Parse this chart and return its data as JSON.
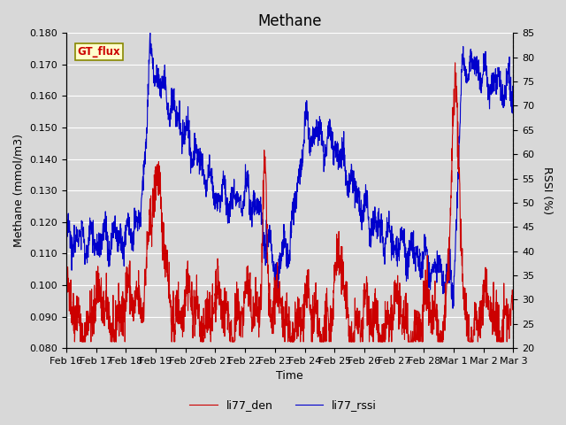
{
  "title": "Methane",
  "ylabel_left": "Methane (mmol/m3)",
  "ylabel_right": "RSSI (%)",
  "xlabel": "Time",
  "ylim_left": [
    0.08,
    0.18
  ],
  "ylim_right": [
    20,
    85
  ],
  "yticks_left": [
    0.08,
    0.09,
    0.1,
    0.11,
    0.12,
    0.13,
    0.14,
    0.15,
    0.16,
    0.17,
    0.18
  ],
  "yticks_right": [
    20,
    25,
    30,
    35,
    40,
    45,
    50,
    55,
    60,
    65,
    70,
    75,
    80,
    85
  ],
  "xtick_labels": [
    "Feb 16",
    "Feb 17",
    "Feb 18",
    "Feb 19",
    "Feb 20",
    "Feb 21",
    "Feb 22",
    "Feb 23",
    "Feb 24",
    "Feb 25",
    "Feb 26",
    "Feb 27",
    "Feb 28",
    "Mar 1",
    "Mar 2",
    "Mar 3"
  ],
  "line_color_den": "#cc0000",
  "line_color_rssi": "#0000cc",
  "legend_label_den": "li77_den",
  "legend_label_rssi": "li77_rssi",
  "gt_flux_label": "GT_flux",
  "background_color": "#d8d8d8",
  "plot_bg_color": "#d8d8d8",
  "grid_color": "#ffffff",
  "title_fontsize": 12,
  "axis_fontsize": 9,
  "tick_fontsize": 8
}
